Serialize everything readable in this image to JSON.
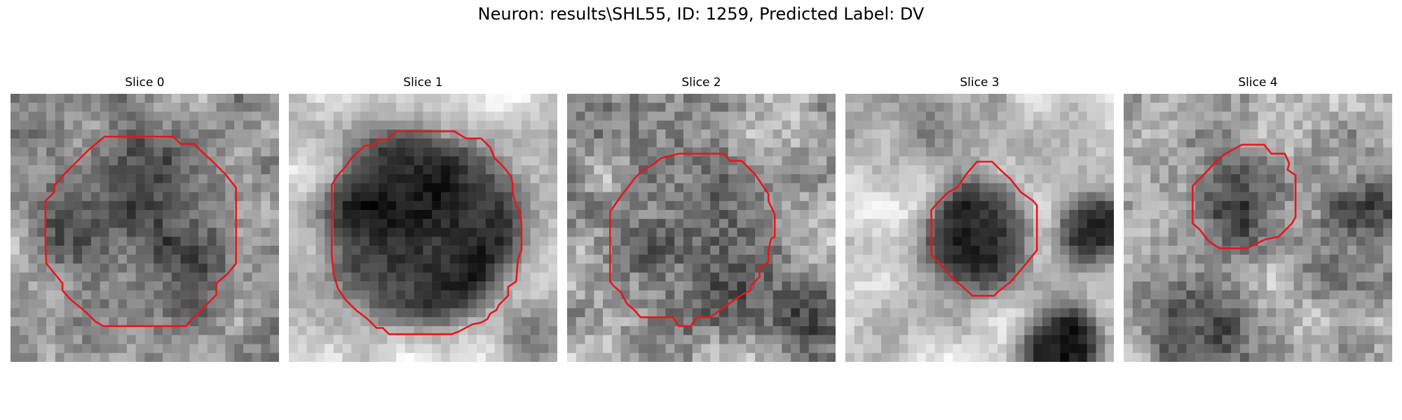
{
  "figure": {
    "suptitle": "Neuron: results\\SHL55, ID: 1259, Predicted Label: DV",
    "contour_color": "#e8161b",
    "image_colormap": "gray",
    "grid": 30,
    "panels": [
      {
        "title": "Slice 0",
        "seed": 11,
        "base": 0.6,
        "noise": 0.22,
        "blobs": [
          {
            "cx": 15,
            "cy": 14.5,
            "r": 10.5,
            "depth": 0.22,
            "soft": 2
          }
        ],
        "contour": [
          [
            10.5,
            4.8
          ],
          [
            18.2,
            4.8
          ],
          [
            19,
            5.6
          ],
          [
            20.5,
            5.6
          ],
          [
            21.2,
            6.3
          ],
          [
            22.5,
            7.5
          ],
          [
            24,
            9
          ],
          [
            25.2,
            10.5
          ],
          [
            25.2,
            19
          ],
          [
            24.2,
            20.2
          ],
          [
            23,
            21.2
          ],
          [
            23,
            22.5
          ],
          [
            22,
            23.5
          ],
          [
            20,
            25.5
          ],
          [
            19.6,
            26
          ],
          [
            10.4,
            26
          ],
          [
            9.5,
            25.5
          ],
          [
            8.5,
            24.5
          ],
          [
            6.7,
            23
          ],
          [
            5.8,
            22
          ],
          [
            5.8,
            21.2
          ],
          [
            5,
            20.2
          ],
          [
            4,
            19
          ],
          [
            3.9,
            17
          ],
          [
            3.9,
            12
          ],
          [
            4.9,
            11
          ],
          [
            4.9,
            10.3
          ],
          [
            6,
            9
          ],
          [
            7.2,
            7.8
          ],
          [
            8.7,
            6.3
          ]
        ]
      },
      {
        "title": "Slice 1",
        "seed": 27,
        "base": 0.82,
        "noise": 0.14,
        "blobs": [
          {
            "cx": 15,
            "cy": 14.7,
            "r": 10.8,
            "depth": 0.66,
            "soft": 2.2
          },
          {
            "cx": 28,
            "cy": 27,
            "r": 3.5,
            "depth": 0.35,
            "soft": 2
          }
        ],
        "contour": [
          [
            12,
            4.2
          ],
          [
            18.5,
            4.2
          ],
          [
            19.8,
            5
          ],
          [
            21.5,
            5
          ],
          [
            22.5,
            6
          ],
          [
            23,
            7.2
          ],
          [
            24,
            8.2
          ],
          [
            24.8,
            9.2
          ],
          [
            25,
            10
          ],
          [
            25,
            10.8
          ],
          [
            25.2,
            11.8
          ],
          [
            25.4,
            12.5
          ],
          [
            25.8,
            13.2
          ],
          [
            26,
            14.5
          ],
          [
            26,
            17.5
          ],
          [
            25.6,
            18.5
          ],
          [
            25.4,
            21
          ],
          [
            24.5,
            21.6
          ],
          [
            24.5,
            22.6
          ],
          [
            23.5,
            23.6
          ],
          [
            23.2,
            24.2
          ],
          [
            22.5,
            24.6
          ],
          [
            22.2,
            25.2
          ],
          [
            21.5,
            25.6
          ],
          [
            20.5,
            25.8
          ],
          [
            19,
            26.6
          ],
          [
            18.2,
            26.9
          ],
          [
            11.2,
            26.9
          ],
          [
            10.5,
            26.2
          ],
          [
            9.8,
            26.2
          ],
          [
            8.8,
            25.2
          ],
          [
            7.5,
            24.2
          ],
          [
            6.3,
            23
          ],
          [
            5.5,
            21.8
          ],
          [
            5,
            20.2
          ],
          [
            4.8,
            18
          ],
          [
            4.8,
            10.2
          ],
          [
            5.4,
            9.2
          ],
          [
            6.3,
            8.2
          ],
          [
            7,
            7.2
          ],
          [
            8.5,
            5.8
          ],
          [
            9.5,
            5.8
          ],
          [
            10,
            5.1
          ],
          [
            11,
            5.1
          ]
        ]
      },
      {
        "title": "Slice 2",
        "seed": 43,
        "base": 0.62,
        "noise": 0.28,
        "blobs": [
          {
            "cx": 15,
            "cy": 15.5,
            "r": 9.5,
            "depth": 0.18,
            "soft": 2
          },
          {
            "cx": 27,
            "cy": 25,
            "r": 3,
            "depth": 0.25,
            "soft": 1.5
          }
        ],
        "contour": [
          [
            12.5,
            6.7
          ],
          [
            17.5,
            6.7
          ],
          [
            18.2,
            7.5
          ],
          [
            19.5,
            7.5
          ],
          [
            20.2,
            8.2
          ],
          [
            21,
            9
          ],
          [
            22,
            10.5
          ],
          [
            22.5,
            11.2
          ],
          [
            22.5,
            12
          ],
          [
            23.2,
            13.5
          ],
          [
            23.2,
            16
          ],
          [
            22.8,
            16.2
          ],
          [
            22.5,
            17.5
          ],
          [
            22.5,
            18.8
          ],
          [
            21.5,
            19.5
          ],
          [
            21.5,
            20.5
          ],
          [
            20.5,
            21.5
          ],
          [
            20.5,
            22
          ],
          [
            19.5,
            22.5
          ],
          [
            18.5,
            23.2
          ],
          [
            16,
            25
          ],
          [
            14.5,
            25
          ],
          [
            13.8,
            26
          ],
          [
            12.5,
            26
          ],
          [
            11.8,
            25
          ],
          [
            8.2,
            25
          ],
          [
            7.5,
            24.2
          ],
          [
            6.7,
            23.5
          ],
          [
            6,
            22.2
          ],
          [
            5.2,
            21.5
          ],
          [
            4.8,
            21
          ],
          [
            4.8,
            13.2
          ],
          [
            5.5,
            12.2
          ],
          [
            6.2,
            11.2
          ],
          [
            7,
            10.2
          ],
          [
            7.5,
            9.5
          ],
          [
            8.5,
            8.5
          ],
          [
            9.5,
            8
          ],
          [
            10.5,
            7.2
          ]
        ]
      },
      {
        "title": "Slice 3",
        "seed": 58,
        "base": 0.8,
        "noise": 0.14,
        "blobs": [
          {
            "cx": 15,
            "cy": 15.7,
            "r": 5.8,
            "depth": 0.55,
            "soft": 1.6
          },
          {
            "cx": 27.5,
            "cy": 15,
            "r": 3.5,
            "depth": 0.55,
            "soft": 1.6
          },
          {
            "cx": 24,
            "cy": 28.5,
            "r": 4.5,
            "depth": 0.6,
            "soft": 1.5
          },
          {
            "cx": 9,
            "cy": 1,
            "r": 6,
            "depth": 0.25,
            "soft": 3
          }
        ],
        "contour": [
          [
            14.7,
            7.6
          ],
          [
            16.4,
            7.6
          ],
          [
            17.3,
            8.5
          ],
          [
            18.4,
            9.5
          ],
          [
            19.6,
            11
          ],
          [
            21,
            12
          ],
          [
            21.4,
            12.5
          ],
          [
            21.4,
            17.5
          ],
          [
            20.2,
            19
          ],
          [
            18.5,
            21
          ],
          [
            17,
            22.2
          ],
          [
            16.6,
            22.6
          ],
          [
            14.2,
            22.6
          ],
          [
            13,
            21.5
          ],
          [
            12,
            20.7
          ],
          [
            11,
            19.5
          ],
          [
            9.6,
            18
          ],
          [
            9.6,
            13
          ],
          [
            10.5,
            12
          ],
          [
            11.5,
            11
          ],
          [
            12.5,
            10.5
          ],
          [
            13.5,
            9
          ]
        ]
      },
      {
        "title": "Slice 4",
        "seed": 71,
        "base": 0.66,
        "noise": 0.24,
        "blobs": [
          {
            "cx": 13.5,
            "cy": 11.5,
            "r": 5,
            "depth": 0.32,
            "soft": 1.6
          },
          {
            "cx": 26,
            "cy": 14,
            "r": 6,
            "depth": 0.28,
            "soft": 3
          },
          {
            "cx": 8,
            "cy": 27,
            "r": 5,
            "depth": 0.4,
            "soft": 2
          }
        ],
        "contour": [
          [
            13.2,
            5.7
          ],
          [
            15.7,
            5.7
          ],
          [
            16.5,
            6.7
          ],
          [
            18,
            6.7
          ],
          [
            18.5,
            7.8
          ],
          [
            18.3,
            8.5
          ],
          [
            19.2,
            9.1
          ],
          [
            19.2,
            13.8
          ],
          [
            18.8,
            14.5
          ],
          [
            17.3,
            16
          ],
          [
            15.8,
            16.3
          ],
          [
            13.7,
            17.3
          ],
          [
            10.7,
            17.3
          ],
          [
            9.5,
            16.5
          ],
          [
            8.5,
            15.2
          ],
          [
            7.7,
            14.5
          ],
          [
            7.7,
            10.3
          ],
          [
            9,
            9
          ],
          [
            10.2,
            7.7
          ],
          [
            11.2,
            6.8
          ]
        ]
      }
    ]
  }
}
